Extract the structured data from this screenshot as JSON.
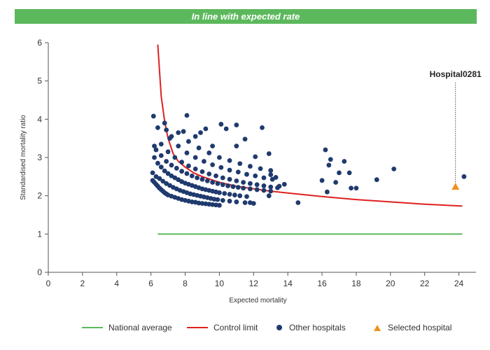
{
  "banner": {
    "text": "In line with expected rate"
  },
  "colors": {
    "banner": "#5cb85c",
    "national": "#5cb85c",
    "control": "#e02020",
    "hospitals": "#1f3a6e",
    "selected": "#f0901e"
  },
  "legend": {
    "national_label": "National average",
    "control_label": "Control limit",
    "others_label": "Other hospitals",
    "selected_label": "Selected hospital"
  },
  "chart_data": {
    "type": "scatter",
    "xlabel": "Expected mortality",
    "ylabel": "Standardised mortality ratio",
    "xlim": [
      0,
      25
    ],
    "ylim": [
      0,
      6
    ],
    "xticks": [
      0,
      2,
      4,
      6,
      8,
      10,
      12,
      14,
      16,
      18,
      20,
      22,
      24
    ],
    "yticks": [
      0,
      1,
      2,
      3,
      4,
      5,
      6
    ],
    "grid": false,
    "legend_position": "bottom",
    "national_average": {
      "y": 1,
      "x_range": [
        6.4,
        24.2
      ]
    },
    "control_limit": {
      "x": [
        6.4,
        6.6,
        6.8,
        7.0,
        7.3,
        7.6,
        8.0,
        8.5,
        9.0,
        10.0,
        11.0,
        12.0,
        13.0,
        14.0,
        16.0,
        18.0,
        20.0,
        22.0,
        24.2
      ],
      "y": [
        5.95,
        4.6,
        3.95,
        3.5,
        3.1,
        2.9,
        2.75,
        2.6,
        2.5,
        2.35,
        2.25,
        2.18,
        2.12,
        2.07,
        1.98,
        1.9,
        1.84,
        1.78,
        1.73
      ]
    },
    "other_hospitals": [
      [
        6.1,
        2.4
      ],
      [
        6.2,
        2.35
      ],
      [
        6.3,
        2.3
      ],
      [
        6.4,
        2.25
      ],
      [
        6.5,
        2.2
      ],
      [
        6.6,
        2.16
      ],
      [
        6.7,
        2.12
      ],
      [
        6.8,
        2.08
      ],
      [
        6.9,
        2.05
      ],
      [
        7.0,
        2.02
      ],
      [
        7.2,
        1.99
      ],
      [
        7.4,
        1.96
      ],
      [
        7.6,
        1.93
      ],
      [
        7.8,
        1.9
      ],
      [
        8.0,
        1.88
      ],
      [
        8.2,
        1.86
      ],
      [
        8.4,
        1.84
      ],
      [
        8.6,
        1.83
      ],
      [
        8.8,
        1.81
      ],
      [
        9.0,
        1.8
      ],
      [
        9.2,
        1.79
      ],
      [
        9.4,
        1.78
      ],
      [
        9.6,
        1.77
      ],
      [
        9.8,
        1.76
      ],
      [
        10.0,
        1.75
      ],
      [
        6.1,
        2.6
      ],
      [
        6.3,
        2.5
      ],
      [
        6.5,
        2.45
      ],
      [
        6.7,
        2.38
      ],
      [
        6.9,
        2.32
      ],
      [
        7.1,
        2.27
      ],
      [
        7.3,
        2.22
      ],
      [
        7.5,
        2.18
      ],
      [
        7.7,
        2.14
      ],
      [
        7.9,
        2.11
      ],
      [
        8.1,
        2.08
      ],
      [
        8.3,
        2.05
      ],
      [
        8.5,
        2.03
      ],
      [
        8.7,
        2.01
      ],
      [
        8.9,
        1.99
      ],
      [
        9.1,
        1.97
      ],
      [
        9.3,
        1.95
      ],
      [
        9.5,
        1.93
      ],
      [
        9.7,
        1.91
      ],
      [
        9.9,
        1.9
      ],
      [
        10.2,
        1.88
      ],
      [
        10.6,
        1.86
      ],
      [
        11.0,
        1.84
      ],
      [
        11.5,
        1.82
      ],
      [
        12.0,
        1.8
      ],
      [
        6.2,
        3.0
      ],
      [
        6.4,
        2.85
      ],
      [
        6.6,
        2.75
      ],
      [
        6.8,
        2.65
      ],
      [
        7.0,
        2.58
      ],
      [
        7.2,
        2.52
      ],
      [
        7.4,
        2.47
      ],
      [
        7.6,
        2.42
      ],
      [
        7.8,
        2.37
      ],
      [
        8.0,
        2.33
      ],
      [
        8.2,
        2.3
      ],
      [
        8.4,
        2.27
      ],
      [
        8.6,
        2.24
      ],
      [
        8.8,
        2.21
      ],
      [
        9.0,
        2.18
      ],
      [
        9.2,
        2.16
      ],
      [
        9.4,
        2.14
      ],
      [
        9.6,
        2.12
      ],
      [
        9.8,
        2.1
      ],
      [
        10.0,
        2.08
      ],
      [
        10.3,
        2.06
      ],
      [
        10.6,
        2.04
      ],
      [
        10.9,
        2.02
      ],
      [
        11.2,
        2.0
      ],
      [
        11.6,
        1.98
      ],
      [
        6.3,
        3.2
      ],
      [
        6.6,
        3.05
      ],
      [
        6.9,
        2.9
      ],
      [
        7.2,
        2.8
      ],
      [
        7.5,
        2.72
      ],
      [
        7.8,
        2.64
      ],
      [
        8.1,
        2.58
      ],
      [
        8.4,
        2.52
      ],
      [
        8.7,
        2.47
      ],
      [
        9.0,
        2.43
      ],
      [
        9.3,
        2.39
      ],
      [
        9.6,
        2.35
      ],
      [
        9.9,
        2.32
      ],
      [
        10.2,
        2.29
      ],
      [
        10.5,
        2.26
      ],
      [
        10.8,
        2.24
      ],
      [
        11.1,
        2.22
      ],
      [
        11.4,
        2.2
      ],
      [
        11.8,
        2.18
      ],
      [
        12.2,
        2.16
      ],
      [
        12.6,
        2.14
      ],
      [
        13.0,
        2.12
      ],
      [
        6.6,
        3.35
      ],
      [
        7.0,
        3.15
      ],
      [
        7.4,
        3.0
      ],
      [
        7.8,
        2.88
      ],
      [
        8.2,
        2.78
      ],
      [
        8.6,
        2.7
      ],
      [
        9.0,
        2.63
      ],
      [
        9.4,
        2.57
      ],
      [
        9.8,
        2.52
      ],
      [
        10.2,
        2.47
      ],
      [
        10.6,
        2.43
      ],
      [
        11.0,
        2.39
      ],
      [
        11.4,
        2.35
      ],
      [
        11.8,
        2.32
      ],
      [
        12.2,
        2.29
      ],
      [
        12.6,
        2.26
      ],
      [
        13.0,
        2.23
      ],
      [
        13.4,
        2.21
      ],
      [
        7.1,
        3.5
      ],
      [
        7.6,
        3.3
      ],
      [
        8.1,
        3.12
      ],
      [
        8.6,
        3.0
      ],
      [
        9.1,
        2.9
      ],
      [
        9.6,
        2.81
      ],
      [
        10.1,
        2.74
      ],
      [
        10.6,
        2.67
      ],
      [
        11.1,
        2.62
      ],
      [
        11.6,
        2.56
      ],
      [
        12.1,
        2.52
      ],
      [
        12.6,
        2.47
      ],
      [
        13.1,
        2.43
      ],
      [
        7.6,
        3.65
      ],
      [
        8.2,
        3.42
      ],
      [
        8.8,
        3.25
      ],
      [
        9.4,
        3.12
      ],
      [
        10.0,
        3.0
      ],
      [
        10.6,
        2.92
      ],
      [
        11.2,
        2.84
      ],
      [
        11.8,
        2.77
      ],
      [
        12.4,
        2.71
      ],
      [
        13.0,
        2.66
      ],
      [
        6.2,
        3.3
      ],
      [
        6.15,
        4.08
      ],
      [
        6.4,
        3.78
      ],
      [
        6.9,
        3.72
      ],
      [
        6.8,
        3.9
      ],
      [
        7.2,
        3.55
      ],
      [
        7.9,
        3.68
      ],
      [
        8.1,
        4.1
      ],
      [
        8.6,
        3.55
      ],
      [
        8.9,
        3.65
      ],
      [
        9.2,
        3.75
      ],
      [
        9.6,
        3.3
      ],
      [
        10.1,
        3.87
      ],
      [
        10.4,
        3.75
      ],
      [
        11.0,
        3.85
      ],
      [
        11.0,
        3.3
      ],
      [
        11.5,
        3.48
      ],
      [
        12.1,
        3.02
      ],
      [
        12.5,
        3.78
      ],
      [
        12.9,
        3.1
      ],
      [
        13.0,
        2.55
      ],
      [
        13.3,
        2.48
      ],
      [
        13.5,
        2.25
      ],
      [
        13.8,
        2.3
      ],
      [
        12.9,
        2.0
      ],
      [
        11.8,
        1.82
      ],
      [
        14.6,
        1.82
      ],
      [
        16.0,
        2.4
      ],
      [
        16.2,
        3.2
      ],
      [
        16.3,
        2.1
      ],
      [
        16.4,
        2.8
      ],
      [
        16.5,
        2.95
      ],
      [
        16.8,
        2.35
      ],
      [
        17.0,
        2.6
      ],
      [
        17.3,
        2.9
      ],
      [
        17.6,
        2.6
      ],
      [
        17.7,
        2.2
      ],
      [
        18.0,
        2.2
      ],
      [
        19.2,
        2.42
      ],
      [
        20.2,
        2.7
      ],
      [
        24.3,
        2.5
      ]
    ],
    "selected_hospital": {
      "name": "Hospital0281",
      "x": 23.8,
      "y": 2.23
    }
  }
}
